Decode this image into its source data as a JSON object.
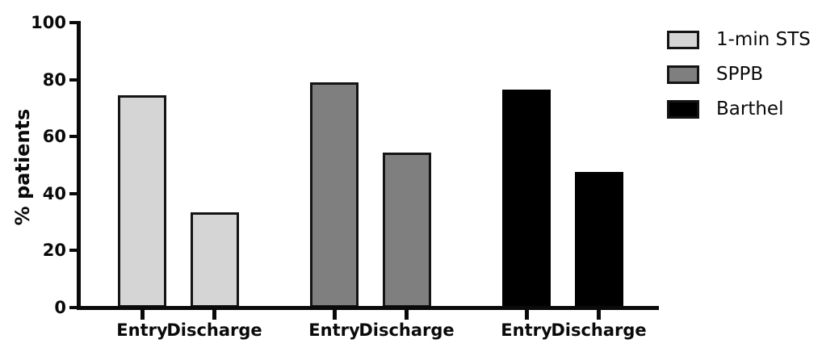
{
  "chart_data": {
    "type": "bar",
    "title": "",
    "xlabel": "",
    "ylabel": "% patients",
    "ylim": [
      0,
      100
    ],
    "yticks": [
      0,
      20,
      40,
      60,
      80,
      100
    ],
    "grid": false,
    "legend_position": "top-right",
    "categories": [
      "Entry",
      "Discharge"
    ],
    "series": [
      {
        "name": "1-min STS",
        "color": "#d5d5d5",
        "values": [
          74.5,
          33.5
        ]
      },
      {
        "name": "SPPB",
        "color": "#7f7f7f",
        "values": [
          79,
          54.5
        ]
      },
      {
        "name": "Barthel",
        "color": "#000000",
        "values": [
          76.5,
          47.5
        ]
      }
    ],
    "colors": {
      "axis": "#0a0a0a",
      "bar_border": "#141414",
      "text": "#0a0a0a",
      "background": "#ffffff"
    }
  }
}
